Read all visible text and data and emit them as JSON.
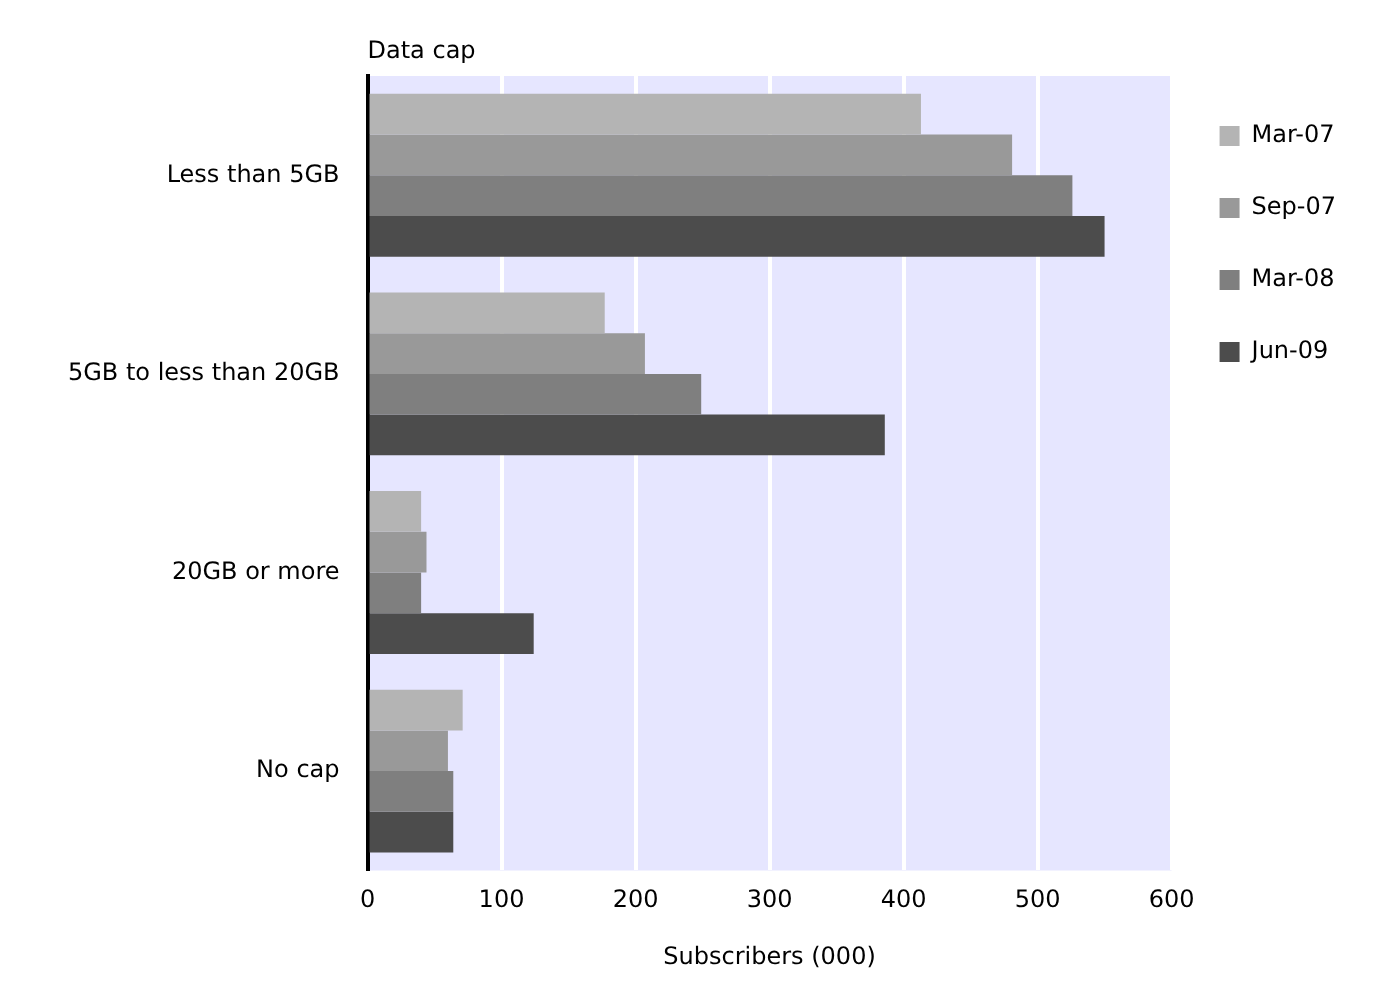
{
  "chart_data": {
    "type": "bar",
    "orientation": "horizontal",
    "ylabel": "Data cap",
    "xlabel": "Subscribers (000)",
    "categories": [
      "Less than 5GB",
      "5GB to less than 20GB",
      "20GB or more",
      "No cap"
    ],
    "series": [
      {
        "name": "Mar-07",
        "color": "#b4b4b4",
        "values": [
          413,
          177,
          40,
          71
        ]
      },
      {
        "name": "Sep-07",
        "color": "#999999",
        "values": [
          481,
          207,
          44,
          60
        ]
      },
      {
        "name": "Mar-08",
        "color": "#7f7f7f",
        "values": [
          526,
          249,
          40,
          64
        ]
      },
      {
        "name": "Jun-09",
        "color": "#4c4c4c",
        "values": [
          550,
          386,
          124,
          64
        ]
      }
    ],
    "xlim": [
      0,
      600
    ],
    "xticks": [
      0,
      100,
      200,
      300,
      400,
      500,
      600
    ],
    "grid": "x",
    "legend": "right"
  }
}
